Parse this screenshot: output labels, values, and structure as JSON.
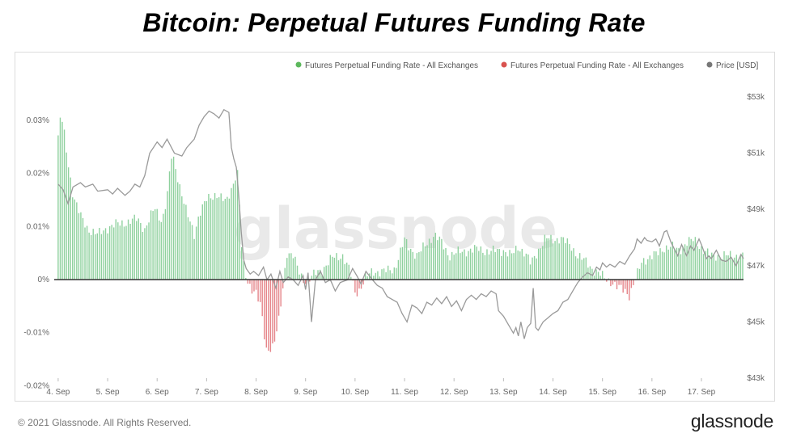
{
  "title": "Bitcoin: Perpetual Futures Funding Rate",
  "footer": {
    "copyright": "© 2021 Glassnode. All Rights Reserved.",
    "logo": "glassnode"
  },
  "watermark": "glassnode",
  "colors": {
    "positive": "#8fd19e",
    "negative": "#e5858a",
    "price": "#9a9a9a",
    "zero_line": "#333333"
  },
  "chart_data": {
    "type": "bar",
    "title": "Bitcoin: Perpetual Futures Funding Rate",
    "legend": [
      {
        "name": "Futures Perpetual Funding Rate - All Exchanges",
        "color": "#5cb85c"
      },
      {
        "name": "Futures Perpetual Funding Rate - All Exchanges",
        "color": "#d9534f"
      },
      {
        "name": "Price [USD]",
        "color": "#777777"
      }
    ],
    "legend_position": "top-right",
    "x_ticks": [
      "4. Sep",
      "5. Sep",
      "6. Sep",
      "7. Sep",
      "8. Sep",
      "9. Sep",
      "10. Sep",
      "11. Sep",
      "12. Sep",
      "13. Sep",
      "14. Sep",
      "15. Sep",
      "16. Sep",
      "17. Sep"
    ],
    "x_range_days": [
      3.92,
      17.85
    ],
    "y_left": {
      "ticks": [
        "0.03%",
        "0.02%",
        "0.01%",
        "0%",
        "-0.01%",
        "-0.02%"
      ],
      "tick_values": [
        0.03,
        0.02,
        0.01,
        0,
        -0.01,
        -0.02
      ],
      "range": [
        -0.02,
        0.033
      ]
    },
    "y_right": {
      "ticks": [
        "$53k",
        "$51k",
        "$49k",
        "$47k",
        "$45k",
        "$43k"
      ],
      "tick_values": [
        53000,
        51000,
        49000,
        47000,
        45000,
        43000
      ],
      "range": [
        43000,
        53000
      ]
    },
    "funding_rate_keyframes": [
      [
        4.0,
        0.0265
      ],
      [
        4.05,
        0.0312
      ],
      [
        4.1,
        0.029
      ],
      [
        4.2,
        0.022
      ],
      [
        4.3,
        0.016
      ],
      [
        4.45,
        0.012
      ],
      [
        4.6,
        0.0095
      ],
      [
        4.8,
        0.0085
      ],
      [
        5.0,
        0.0098
      ],
      [
        5.2,
        0.0105
      ],
      [
        5.4,
        0.0108
      ],
      [
        5.6,
        0.0115
      ],
      [
        5.75,
        0.0095
      ],
      [
        5.95,
        0.0135
      ],
      [
        6.1,
        0.011
      ],
      [
        6.2,
        0.0155
      ],
      [
        6.3,
        0.0238
      ],
      [
        6.45,
        0.018
      ],
      [
        6.6,
        0.0125
      ],
      [
        6.75,
        0.0085
      ],
      [
        6.85,
        0.0125
      ],
      [
        7.0,
        0.015
      ],
      [
        7.2,
        0.0162
      ],
      [
        7.4,
        0.0145
      ],
      [
        7.55,
        0.0185
      ],
      [
        7.62,
        0.0208
      ],
      [
        7.68,
        0.012
      ],
      [
        7.72,
        0.0038
      ],
      [
        7.8,
        0.0002
      ],
      [
        7.9,
        -0.0015
      ],
      [
        8.0,
        -0.0025
      ],
      [
        8.1,
        -0.0055
      ],
      [
        8.2,
        -0.0132
      ],
      [
        8.35,
        -0.0125
      ],
      [
        8.45,
        -0.0085
      ],
      [
        8.55,
        -0.001
      ],
      [
        8.62,
        0.0052
      ],
      [
        8.75,
        0.0045
      ],
      [
        8.85,
        0.0018
      ],
      [
        8.95,
        0.0
      ],
      [
        9.05,
        -0.0002
      ],
      [
        9.2,
        0.0012
      ],
      [
        9.35,
        0.002
      ],
      [
        9.55,
        0.0042
      ],
      [
        9.75,
        0.0045
      ],
      [
        9.9,
        0.0015
      ],
      [
        10.0,
        -0.0025
      ],
      [
        10.1,
        -0.0018
      ],
      [
        10.2,
        0.0002
      ],
      [
        10.35,
        0.0015
      ],
      [
        10.55,
        0.0015
      ],
      [
        10.8,
        0.002
      ],
      [
        11.0,
        0.0075
      ],
      [
        11.1,
        0.006
      ],
      [
        11.25,
        0.0045
      ],
      [
        11.45,
        0.0068
      ],
      [
        11.6,
        0.0085
      ],
      [
        11.75,
        0.007
      ],
      [
        11.9,
        0.0045
      ],
      [
        12.1,
        0.0052
      ],
      [
        12.3,
        0.0055
      ],
      [
        12.5,
        0.0058
      ],
      [
        12.7,
        0.0052
      ],
      [
        12.85,
        0.0055
      ],
      [
        13.0,
        0.0055
      ],
      [
        13.15,
        0.0045
      ],
      [
        13.3,
        0.0062
      ],
      [
        13.45,
        0.0048
      ],
      [
        13.55,
        0.003
      ],
      [
        13.7,
        0.0055
      ],
      [
        13.85,
        0.0078
      ],
      [
        14.0,
        0.0075
      ],
      [
        14.15,
        0.0078
      ],
      [
        14.35,
        0.0065
      ],
      [
        14.5,
        0.0045
      ],
      [
        14.65,
        0.0035
      ],
      [
        14.8,
        0.002
      ],
      [
        14.95,
        0.001
      ],
      [
        15.05,
        0.0002
      ],
      [
        15.2,
        -0.0005
      ],
      [
        15.3,
        -0.0015
      ],
      [
        15.45,
        -0.002
      ],
      [
        15.55,
        -0.003
      ],
      [
        15.6,
        -0.0015
      ],
      [
        15.7,
        0.0008
      ],
      [
        15.8,
        0.0035
      ],
      [
        15.95,
        0.0042
      ],
      [
        16.1,
        0.0048
      ],
      [
        16.25,
        0.006
      ],
      [
        16.4,
        0.0062
      ],
      [
        16.55,
        0.0055
      ],
      [
        16.7,
        0.007
      ],
      [
        16.85,
        0.0075
      ],
      [
        16.95,
        0.0065
      ],
      [
        17.05,
        0.0055
      ],
      [
        17.2,
        0.0045
      ]
    ],
    "price_keyframes": [
      [
        4.0,
        49900
      ],
      [
        4.1,
        49700
      ],
      [
        4.2,
        49200
      ],
      [
        4.3,
        49800
      ],
      [
        4.45,
        49950
      ],
      [
        4.55,
        49800
      ],
      [
        4.7,
        49900
      ],
      [
        4.8,
        49650
      ],
      [
        5.0,
        49700
      ],
      [
        5.1,
        49550
      ],
      [
        5.2,
        49750
      ],
      [
        5.35,
        49500
      ],
      [
        5.45,
        49650
      ],
      [
        5.55,
        49900
      ],
      [
        5.65,
        49800
      ],
      [
        5.75,
        50200
      ],
      [
        5.85,
        51000
      ],
      [
        6.0,
        51400
      ],
      [
        6.1,
        51200
      ],
      [
        6.2,
        51500
      ],
      [
        6.35,
        51000
      ],
      [
        6.5,
        50900
      ],
      [
        6.6,
        51200
      ],
      [
        6.75,
        51500
      ],
      [
        6.85,
        52000
      ],
      [
        6.95,
        52300
      ],
      [
        7.05,
        52500
      ],
      [
        7.15,
        52400
      ],
      [
        7.25,
        52250
      ],
      [
        7.35,
        52550
      ],
      [
        7.45,
        52450
      ],
      [
        7.5,
        51200
      ],
      [
        7.55,
        50800
      ],
      [
        7.6,
        50500
      ],
      [
        7.65,
        49500
      ],
      [
        7.7,
        48200
      ],
      [
        7.75,
        47200
      ],
      [
        7.8,
        46900
      ],
      [
        7.88,
        46700
      ],
      [
        7.95,
        46800
      ],
      [
        8.05,
        46650
      ],
      [
        8.15,
        46950
      ],
      [
        8.22,
        46500
      ],
      [
        8.3,
        46700
      ],
      [
        8.4,
        46200
      ],
      [
        8.48,
        46800
      ],
      [
        8.55,
        46400
      ],
      [
        8.65,
        46600
      ],
      [
        8.75,
        46500
      ],
      [
        8.85,
        46300
      ],
      [
        8.95,
        46650
      ],
      [
        9.0,
        46150
      ],
      [
        9.05,
        46750
      ],
      [
        9.12,
        45000
      ],
      [
        9.2,
        46500
      ],
      [
        9.3,
        46800
      ],
      [
        9.4,
        46400
      ],
      [
        9.5,
        46500
      ],
      [
        9.6,
        46100
      ],
      [
        9.7,
        46400
      ],
      [
        9.85,
        46500
      ],
      [
        9.95,
        46900
      ],
      [
        10.05,
        46600
      ],
      [
        10.12,
        46350
      ],
      [
        10.22,
        46800
      ],
      [
        10.35,
        46500
      ],
      [
        10.45,
        46300
      ],
      [
        10.55,
        46200
      ],
      [
        10.65,
        45900
      ],
      [
        10.75,
        45800
      ],
      [
        10.85,
        45700
      ],
      [
        10.95,
        45300
      ],
      [
        11.05,
        45000
      ],
      [
        11.15,
        45600
      ],
      [
        11.25,
        45500
      ],
      [
        11.35,
        45300
      ],
      [
        11.45,
        45700
      ],
      [
        11.55,
        45600
      ],
      [
        11.65,
        45850
      ],
      [
        11.75,
        45650
      ],
      [
        11.85,
        45900
      ],
      [
        11.95,
        45550
      ],
      [
        12.05,
        45750
      ],
      [
        12.15,
        45400
      ],
      [
        12.25,
        45800
      ],
      [
        12.35,
        45950
      ],
      [
        12.45,
        45800
      ],
      [
        12.55,
        46000
      ],
      [
        12.65,
        45900
      ],
      [
        12.75,
        46100
      ],
      [
        12.85,
        46000
      ],
      [
        12.9,
        45400
      ],
      [
        13.0,
        45200
      ],
      [
        13.1,
        44900
      ],
      [
        13.2,
        44600
      ],
      [
        13.25,
        44800
      ],
      [
        13.3,
        44500
      ],
      [
        13.35,
        45000
      ],
      [
        13.42,
        44400
      ],
      [
        13.48,
        44800
      ],
      [
        13.55,
        44950
      ],
      [
        13.6,
        46200
      ],
      [
        13.65,
        44800
      ],
      [
        13.7,
        44700
      ],
      [
        13.8,
        45000
      ],
      [
        13.9,
        45150
      ],
      [
        14.0,
        45300
      ],
      [
        14.1,
        45400
      ],
      [
        14.2,
        45700
      ],
      [
        14.3,
        45800
      ],
      [
        14.4,
        46100
      ],
      [
        14.5,
        46400
      ],
      [
        14.6,
        46600
      ],
      [
        14.7,
        46750
      ],
      [
        14.8,
        46650
      ],
      [
        14.88,
        46950
      ],
      [
        14.95,
        46850
      ],
      [
        15.0,
        47100
      ],
      [
        15.08,
        46950
      ],
      [
        15.15,
        47050
      ],
      [
        15.25,
        46950
      ],
      [
        15.35,
        47150
      ],
      [
        15.45,
        47050
      ],
      [
        15.55,
        47350
      ],
      [
        15.65,
        47600
      ],
      [
        15.7,
        47950
      ],
      [
        15.78,
        47800
      ],
      [
        15.85,
        48000
      ],
      [
        15.9,
        47900
      ],
      [
        16.0,
        47850
      ],
      [
        16.08,
        47950
      ],
      [
        16.15,
        47700
      ],
      [
        16.25,
        48200
      ],
      [
        16.3,
        48250
      ],
      [
        16.38,
        47850
      ],
      [
        16.45,
        47600
      ],
      [
        16.52,
        47350
      ],
      [
        16.6,
        47750
      ],
      [
        16.7,
        47350
      ],
      [
        16.78,
        47700
      ],
      [
        16.85,
        47550
      ],
      [
        16.95,
        47950
      ],
      [
        17.0,
        47750
      ],
      [
        17.05,
        47500
      ],
      [
        17.1,
        47250
      ],
      [
        17.15,
        47350
      ],
      [
        17.2,
        47250
      ],
      [
        17.3,
        47550
      ],
      [
        17.4,
        47200
      ],
      [
        17.5,
        47150
      ],
      [
        17.6,
        47300
      ],
      [
        17.7,
        47000
      ],
      [
        17.8,
        47400
      ],
      [
        17.85,
        47250
      ]
    ]
  }
}
